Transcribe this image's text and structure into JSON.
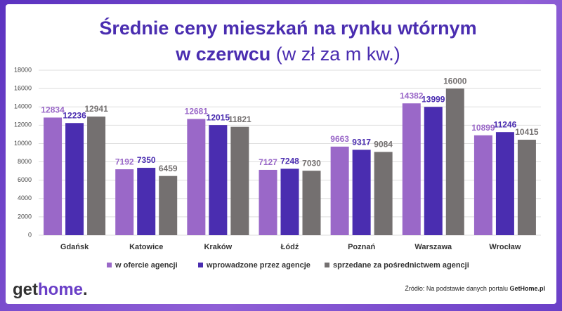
{
  "chart_data": {
    "type": "bar",
    "title": "Średnie ceny mieszkań na rynku wtórnym w czerwcu",
    "subtitle": "(w zł za m kw.)",
    "categories": [
      "Gdańsk",
      "Katowice",
      "Kraków",
      "Łódź",
      "Poznań",
      "Warszawa",
      "Wrocław"
    ],
    "series": [
      {
        "name": "w ofercie agencji",
        "color": "#9a68c8",
        "values": [
          12834,
          7192,
          12681,
          7127,
          9663,
          14382,
          10899
        ]
      },
      {
        "name": "wprowadzone przez agencje",
        "color": "#4a2db0",
        "values": [
          12236,
          7350,
          12015,
          7248,
          9317,
          13999,
          11246
        ]
      },
      {
        "name": "sprzedane za pośrednictwem agencji",
        "color": "#747070",
        "values": [
          12941,
          6459,
          11821,
          7030,
          9084,
          16000,
          10415
        ]
      }
    ],
    "ylim": [
      0,
      18000
    ],
    "yticks": [
      0,
      2000,
      4000,
      6000,
      8000,
      10000,
      12000,
      14000,
      16000,
      18000
    ],
    "grid": true
  },
  "footer": {
    "logo": [
      "get",
      "home",
      "."
    ],
    "source": "Źródło: Na podstawie danych portalu",
    "source_site": "GetHome.pl"
  }
}
